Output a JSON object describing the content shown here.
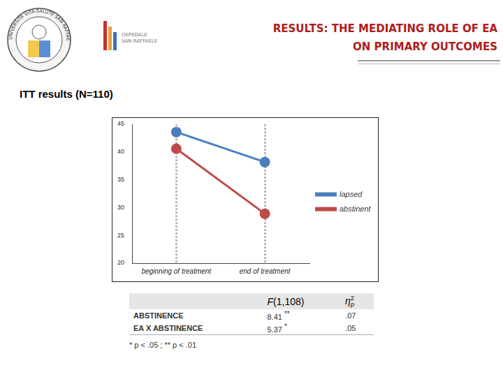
{
  "header": {
    "title_lines": [
      "RESULTS: THE MEDIATING ROLE OF EA",
      "ON PRIMARY OUTCOMES"
    ],
    "university": "UNIVERSITÀ VITA-SALUTE SAN RAFFAELE",
    "hospital": [
      "OSPEDALE",
      "SAN RAFFAELE"
    ]
  },
  "subtitle": "ITT results (N=110)",
  "chart_data": {
    "type": "line",
    "categories": [
      "beginning of treatment",
      "end of treatment"
    ],
    "series": [
      {
        "name": "lapsed",
        "color": "#4a7ebb",
        "values": [
          43.6,
          38.2
        ]
      },
      {
        "name": "abstinent",
        "color": "#be4b48",
        "values": [
          40.6,
          28.9
        ]
      }
    ],
    "ylim": [
      20,
      45
    ],
    "yticks": [
      20,
      25,
      30,
      35,
      40,
      45
    ],
    "grid": "x",
    "legend": "right",
    "marker": "circle"
  },
  "table": {
    "header": [
      "",
      "F(1,108)",
      {
        "base": "η",
        "sup": "2",
        "sub": "p"
      }
    ],
    "rows": [
      {
        "label": "ABSTINENCE",
        "F": "8.41",
        "sig": "**",
        "eta": ".07"
      },
      {
        "label": "EA X ABSTINENCE",
        "F": "5.37",
        "sig": "*",
        "eta": ".05"
      }
    ],
    "footnote": "* p < .05 ; ** p < .01"
  }
}
